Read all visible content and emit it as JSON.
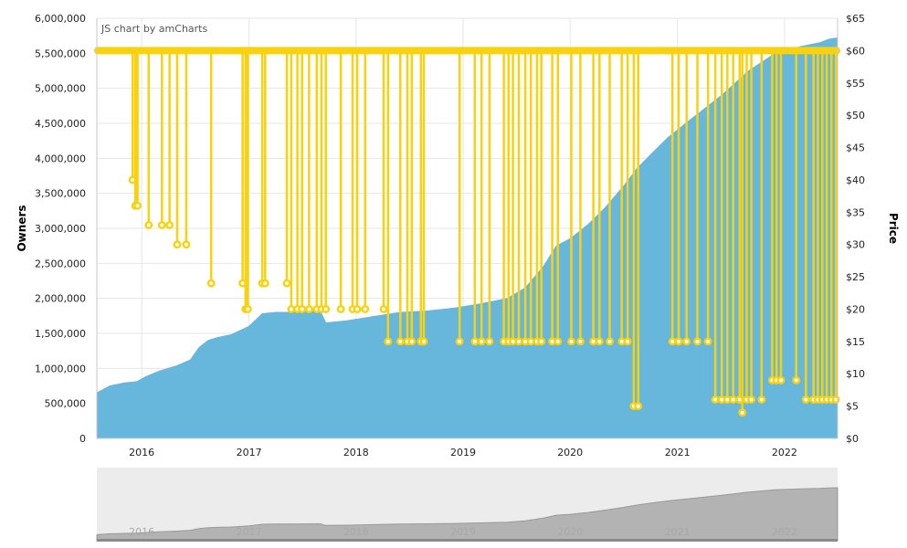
{
  "credit": "JS chart by amCharts",
  "colors": {
    "owners": "#67b7dc",
    "price": "#f8d20e",
    "navigator_bg": "#ececec",
    "navigator_fill": "#b3b3b3",
    "grid": "#e6e6e6"
  },
  "chart_data": {
    "type": "area",
    "xlabel": "",
    "x_ticks": [
      "2016",
      "2017",
      "2018",
      "2019",
      "2020",
      "2021",
      "2022"
    ],
    "x_range": [
      "2015-08-01",
      "2022-07-01"
    ],
    "y_left": {
      "label": "Owners",
      "range": [
        0,
        6000000
      ],
      "ticks": [
        "0",
        "500,000",
        "1,000,000",
        "1,500,000",
        "2,000,000",
        "2,500,000",
        "3,000,000",
        "3,500,000",
        "4,000,000",
        "4,500,000",
        "5,000,000",
        "5,500,000",
        "6,000,000"
      ]
    },
    "y_right": {
      "label": "Price",
      "range": [
        0,
        65
      ],
      "ticks": [
        "$0",
        "$5",
        "$10",
        "$15",
        "$20",
        "$25",
        "$30",
        "$35",
        "$40",
        "$45",
        "$50",
        "$55",
        "$60",
        "$65"
      ]
    },
    "series": [
      {
        "name": "Owners",
        "type": "area",
        "points": [
          [
            "2015-08-01",
            650000
          ],
          [
            "2015-09-15",
            750000
          ],
          [
            "2015-11-01",
            790000
          ],
          [
            "2015-12-15",
            810000
          ],
          [
            "2016-01-15",
            880000
          ],
          [
            "2016-03-01",
            960000
          ],
          [
            "2016-05-01",
            1040000
          ],
          [
            "2016-06-15",
            1120000
          ],
          [
            "2016-07-15",
            1300000
          ],
          [
            "2016-08-15",
            1400000
          ],
          [
            "2016-09-15",
            1440000
          ],
          [
            "2016-11-01",
            1480000
          ],
          [
            "2017-01-01",
            1600000
          ],
          [
            "2017-02-15",
            1780000
          ],
          [
            "2017-04-01",
            1800000
          ],
          [
            "2017-06-01",
            1800000
          ],
          [
            "2017-09-01",
            1820000
          ],
          [
            "2017-09-20",
            1650000
          ],
          [
            "2017-12-01",
            1680000
          ],
          [
            "2018-03-01",
            1740000
          ],
          [
            "2018-06-01",
            1800000
          ],
          [
            "2018-09-01",
            1820000
          ],
          [
            "2018-12-01",
            1860000
          ],
          [
            "2019-03-01",
            1920000
          ],
          [
            "2019-06-01",
            2000000
          ],
          [
            "2019-08-01",
            2150000
          ],
          [
            "2019-10-01",
            2450000
          ],
          [
            "2019-11-15",
            2750000
          ],
          [
            "2020-01-01",
            2850000
          ],
          [
            "2020-03-01",
            3050000
          ],
          [
            "2020-05-01",
            3300000
          ],
          [
            "2020-07-01",
            3600000
          ],
          [
            "2020-08-15",
            3850000
          ],
          [
            "2020-10-01",
            4050000
          ],
          [
            "2020-12-01",
            4300000
          ],
          [
            "2021-03-01",
            4600000
          ],
          [
            "2021-06-01",
            4900000
          ],
          [
            "2021-09-01",
            5250000
          ],
          [
            "2021-12-01",
            5500000
          ],
          [
            "2022-03-01",
            5600000
          ],
          [
            "2022-05-01",
            5650000
          ],
          [
            "2022-06-01",
            5700000
          ],
          [
            "2022-07-01",
            5720000
          ]
        ]
      },
      {
        "name": "Price",
        "type": "line",
        "base": 60,
        "dips": [
          [
            "2015-12-01",
            40
          ],
          [
            "2015-12-10",
            36
          ],
          [
            "2015-12-18",
            36
          ],
          [
            "2016-01-25",
            33
          ],
          [
            "2016-03-10",
            33
          ],
          [
            "2016-04-05",
            33
          ],
          [
            "2016-05-01",
            30
          ],
          [
            "2016-06-01",
            30
          ],
          [
            "2016-08-25",
            24
          ],
          [
            "2016-12-10",
            24
          ],
          [
            "2016-12-20",
            20
          ],
          [
            "2016-12-28",
            20
          ],
          [
            "2017-02-15",
            24
          ],
          [
            "2017-02-25",
            24
          ],
          [
            "2017-05-10",
            24
          ],
          [
            "2017-05-25",
            20
          ],
          [
            "2017-06-15",
            20
          ],
          [
            "2017-07-01",
            20
          ],
          [
            "2017-07-25",
            20
          ],
          [
            "2017-08-20",
            20
          ],
          [
            "2017-09-05",
            20
          ],
          [
            "2017-09-20",
            20
          ],
          [
            "2017-11-10",
            20
          ],
          [
            "2017-12-20",
            20
          ],
          [
            "2018-01-05",
            20
          ],
          [
            "2018-02-01",
            20
          ],
          [
            "2018-04-05",
            20
          ],
          [
            "2018-04-20",
            15
          ],
          [
            "2018-06-01",
            15
          ],
          [
            "2018-06-25",
            15
          ],
          [
            "2018-07-10",
            15
          ],
          [
            "2018-08-10",
            15
          ],
          [
            "2018-08-20",
            15
          ],
          [
            "2018-12-20",
            15
          ],
          [
            "2019-02-10",
            15
          ],
          [
            "2019-03-05",
            15
          ],
          [
            "2019-04-01",
            15
          ],
          [
            "2019-05-20",
            15
          ],
          [
            "2019-06-05",
            15
          ],
          [
            "2019-06-20",
            15
          ],
          [
            "2019-07-10",
            15
          ],
          [
            "2019-08-01",
            15
          ],
          [
            "2019-08-20",
            15
          ],
          [
            "2019-09-10",
            15
          ],
          [
            "2019-09-25",
            15
          ],
          [
            "2019-11-01",
            15
          ],
          [
            "2019-11-20",
            15
          ],
          [
            "2020-01-05",
            15
          ],
          [
            "2020-02-05",
            15
          ],
          [
            "2020-03-20",
            15
          ],
          [
            "2020-04-10",
            15
          ],
          [
            "2020-05-15",
            15
          ],
          [
            "2020-06-25",
            15
          ],
          [
            "2020-07-15",
            15
          ],
          [
            "2020-08-05",
            5
          ],
          [
            "2020-08-20",
            5
          ],
          [
            "2020-12-15",
            15
          ],
          [
            "2021-01-05",
            15
          ],
          [
            "2021-02-01",
            15
          ],
          [
            "2021-03-10",
            15
          ],
          [
            "2021-04-15",
            15
          ],
          [
            "2021-05-10",
            6
          ],
          [
            "2021-06-01",
            6
          ],
          [
            "2021-06-20",
            6
          ],
          [
            "2021-07-10",
            6
          ],
          [
            "2021-08-01",
            6
          ],
          [
            "2021-08-10",
            4
          ],
          [
            "2021-08-25",
            6
          ],
          [
            "2021-09-10",
            6
          ],
          [
            "2021-10-15",
            6
          ],
          [
            "2021-11-20",
            9
          ],
          [
            "2021-12-05",
            9
          ],
          [
            "2021-12-20",
            9
          ],
          [
            "2022-02-10",
            9
          ],
          [
            "2022-03-15",
            6
          ],
          [
            "2022-04-10",
            6
          ],
          [
            "2022-04-25",
            6
          ],
          [
            "2022-05-10",
            6
          ],
          [
            "2022-05-25",
            6
          ],
          [
            "2022-06-10",
            6
          ],
          [
            "2022-06-25",
            6
          ]
        ]
      }
    ],
    "grid": true,
    "navigator": true
  }
}
